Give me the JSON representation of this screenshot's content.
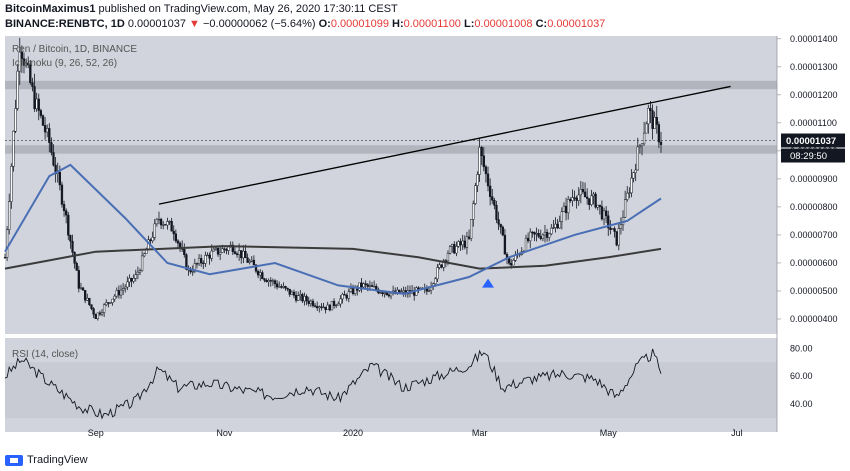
{
  "header": {
    "author": "BitcoinMaximus1",
    "published": "published on TradingView.com, May 26, 2020 17:30:11 CEST",
    "symbol": "BINANCE:RENBTC, 1D",
    "price": "0.00001037",
    "change_arrow": "▼",
    "change": "−0.00000062 (−5.64%)",
    "o_label": "O:",
    "o_value": "0.00001099",
    "h_label": "H:",
    "h_value": "0.00001100",
    "l_label": "L:",
    "l_value": "0.00001008",
    "c_label": "C:",
    "c_value": "0.00001037"
  },
  "legend": {
    "title": "Ren / Bitcoin, 1D, BINANCE",
    "indicator": "Ichimoku (9, 26, 52, 26)",
    "rsi": "RSI (14, close)"
  },
  "footer": {
    "brand": "TradingView"
  },
  "colors": {
    "chart_bg": "#d1d4dc",
    "candle": "#131722",
    "ma_blue": "#4a6fb5",
    "ma_dark": "#3b3b3b",
    "sr_band": "#b2b5be",
    "price_label_bg": "#131722",
    "triangle": "#2962ff"
  },
  "chart_data": [
    {
      "type": "candlestick",
      "title": "Ren / Bitcoin, 1D, BINANCE",
      "x_tick_labels": [
        "Sep",
        "Nov",
        "2020",
        "Mar",
        "May",
        "Jul"
      ],
      "y_tick_labels": [
        "0.00001400",
        "0.00001300",
        "0.00001200",
        "0.00001100",
        "0.00001000",
        "0.00000900",
        "0.00000800",
        "0.00000700",
        "0.00000600",
        "0.00000500",
        "0.00000400"
      ],
      "ylim": [
        3.5e-06,
        1.41e-05
      ],
      "current_price_label": "0.00001037",
      "countdown_label": "08:29:50",
      "price_series_approx": [
        {
          "date": "2019-07-20",
          "close": 6.2e-06
        },
        {
          "date": "2019-07-27",
          "close": 1.39e-05
        },
        {
          "date": "2019-08-03",
          "close": 1.18e-05
        },
        {
          "date": "2019-08-10",
          "close": 1.03e-05
        },
        {
          "date": "2019-08-17",
          "close": 8e-06
        },
        {
          "date": "2019-08-24",
          "close": 5.2e-06
        },
        {
          "date": "2019-09-01",
          "close": 4.1e-06
        },
        {
          "date": "2019-09-08",
          "close": 4.7e-06
        },
        {
          "date": "2019-09-20",
          "close": 5.5e-06
        },
        {
          "date": "2019-10-01",
          "close": 7.6e-06
        },
        {
          "date": "2019-10-08",
          "close": 7.2e-06
        },
        {
          "date": "2019-10-15",
          "close": 5.7e-06
        },
        {
          "date": "2019-10-25",
          "close": 6.3e-06
        },
        {
          "date": "2019-11-05",
          "close": 6.6e-06
        },
        {
          "date": "2019-11-20",
          "close": 5.5e-06
        },
        {
          "date": "2019-12-05",
          "close": 4.8e-06
        },
        {
          "date": "2019-12-20",
          "close": 4.4e-06
        },
        {
          "date": "2020-01-05",
          "close": 5.2e-06
        },
        {
          "date": "2020-01-20",
          "close": 4.9e-06
        },
        {
          "date": "2020-02-05",
          "close": 5e-06
        },
        {
          "date": "2020-02-15",
          "close": 6.4e-06
        },
        {
          "date": "2020-02-25",
          "close": 6.8e-06
        },
        {
          "date": "2020-03-01",
          "close": 1e-05
        },
        {
          "date": "2020-03-08",
          "close": 8e-06
        },
        {
          "date": "2020-03-15",
          "close": 5.9e-06
        },
        {
          "date": "2020-03-25",
          "close": 6.9e-06
        },
        {
          "date": "2020-04-05",
          "close": 7.2e-06
        },
        {
          "date": "2020-04-15",
          "close": 8.5e-06
        },
        {
          "date": "2020-04-25",
          "close": 8.2e-06
        },
        {
          "date": "2020-05-05",
          "close": 6.8e-06
        },
        {
          "date": "2020-05-12",
          "close": 9e-06
        },
        {
          "date": "2020-05-20",
          "close": 1.14e-05
        },
        {
          "date": "2020-05-26",
          "close": 1.037e-05
        }
      ],
      "blue_ma_approx": [
        {
          "date": "2019-07-20",
          "value": 6.4e-06
        },
        {
          "date": "2019-08-10",
          "value": 9.1e-06
        },
        {
          "date": "2019-08-20",
          "value": 9.5e-06
        },
        {
          "date": "2019-09-15",
          "value": 7.6e-06
        },
        {
          "date": "2019-10-05",
          "value": 6e-06
        },
        {
          "date": "2019-10-25",
          "value": 5.6e-06
        },
        {
          "date": "2019-11-25",
          "value": 6e-06
        },
        {
          "date": "2019-12-25",
          "value": 5.2e-06
        },
        {
          "date": "2020-01-25",
          "value": 4.9e-06
        },
        {
          "date": "2020-02-25",
          "value": 5.5e-06
        },
        {
          "date": "2020-03-15",
          "value": 6.2e-06
        },
        {
          "date": "2020-04-15",
          "value": 7e-06
        },
        {
          "date": "2020-05-10",
          "value": 7.5e-06
        },
        {
          "date": "2020-05-26",
          "value": 8.3e-06
        }
      ],
      "dark_ma_approx": [
        {
          "date": "2019-07-20",
          "value": 5.8e-06
        },
        {
          "date": "2019-09-01",
          "value": 6.4e-06
        },
        {
          "date": "2019-11-01",
          "value": 6.6e-06
        },
        {
          "date": "2020-01-01",
          "value": 6.5e-06
        },
        {
          "date": "2020-02-01",
          "value": 6.2e-06
        },
        {
          "date": "2020-03-01",
          "value": 5.8e-06
        },
        {
          "date": "2020-04-01",
          "value": 5.9e-06
        },
        {
          "date": "2020-05-01",
          "value": 6.2e-06
        },
        {
          "date": "2020-05-26",
          "value": 6.5e-06
        }
      ],
      "support_resistance_bands": [
        [
          1.22e-05,
          1.25e-05
        ],
        [
          9.9e-06,
          1.02e-05
        ]
      ],
      "trendline": [
        {
          "date": "2019-10-01",
          "value": 8.1e-06
        },
        {
          "date": "2020-06-28",
          "value": 1.23e-05
        }
      ]
    },
    {
      "type": "line",
      "title": "RSI (14, close)",
      "y_tick_labels": [
        "80.00",
        "60.00",
        "40.00"
      ],
      "ylim": [
        20,
        86
      ],
      "rsi_approx": [
        {
          "date": "2019-07-20",
          "value": 60
        },
        {
          "date": "2019-07-28",
          "value": 72
        },
        {
          "date": "2019-08-10",
          "value": 55
        },
        {
          "date": "2019-08-25",
          "value": 38
        },
        {
          "date": "2019-09-05",
          "value": 32
        },
        {
          "date": "2019-09-20",
          "value": 42
        },
        {
          "date": "2019-10-01",
          "value": 65
        },
        {
          "date": "2019-10-10",
          "value": 52
        },
        {
          "date": "2019-10-25",
          "value": 55
        },
        {
          "date": "2019-11-10",
          "value": 50
        },
        {
          "date": "2019-11-25",
          "value": 46
        },
        {
          "date": "2019-12-10",
          "value": 52
        },
        {
          "date": "2019-12-25",
          "value": 44
        },
        {
          "date": "2020-01-10",
          "value": 68
        },
        {
          "date": "2020-01-25",
          "value": 52
        },
        {
          "date": "2020-02-10",
          "value": 60
        },
        {
          "date": "2020-02-25",
          "value": 68
        },
        {
          "date": "2020-03-03",
          "value": 78
        },
        {
          "date": "2020-03-12",
          "value": 52
        },
        {
          "date": "2020-03-25",
          "value": 58
        },
        {
          "date": "2020-04-10",
          "value": 62
        },
        {
          "date": "2020-04-25",
          "value": 58
        },
        {
          "date": "2020-05-05",
          "value": 45
        },
        {
          "date": "2020-05-15",
          "value": 68
        },
        {
          "date": "2020-05-22",
          "value": 76
        },
        {
          "date": "2020-05-26",
          "value": 64
        }
      ]
    }
  ]
}
